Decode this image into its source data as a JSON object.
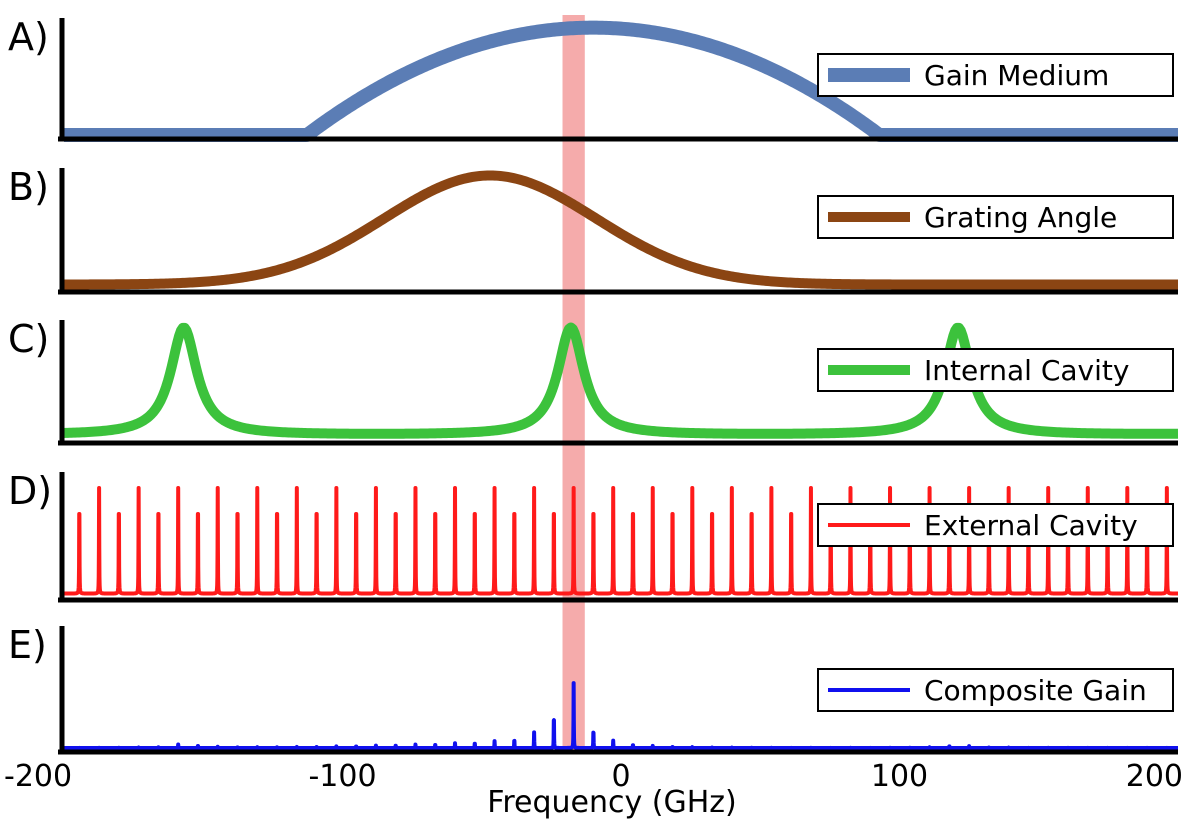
{
  "chart_data": {
    "type": "line",
    "x_axis": {
      "label": "Frequency (GHz)",
      "range": [
        -200,
        200
      ],
      "ticks": [
        -200,
        -100,
        0,
        100,
        200
      ],
      "tick_labels": [
        "-200",
        "-100",
        "0",
        "100",
        "200"
      ]
    },
    "highlight_band": {
      "center": -17,
      "width": 8,
      "color": "#f4a6a6"
    },
    "panels": [
      {
        "label": "A)",
        "series": {
          "name": "Gain Medium",
          "color": "#5b7db5",
          "kind": "wide",
          "center": -10,
          "curvature": 3e-07,
          "level": 0.95
        },
        "legend": "Gain Medium"
      },
      {
        "label": "B)",
        "series": {
          "name": "Grating Angle",
          "color": "#8b4513",
          "kind": "gaussian",
          "center": -47,
          "sigma": 38,
          "baseline": 0.03,
          "peak": 0.97
        },
        "legend": "Grating Angle"
      },
      {
        "label": "C)",
        "series": {
          "name": "Internal Cavity",
          "color": "#3cc23c",
          "kind": "airy",
          "peaks": [
            -157,
            -18,
            121
          ],
          "fsr": 139,
          "finesse_f": 60,
          "baseline": 0.03,
          "peak": 0.97
        },
        "legend": "Internal Cavity"
      },
      {
        "label": "D)",
        "series": {
          "name": "External Cavity",
          "color": "#ff1a1a",
          "kind": "comb",
          "spacing": 7.1,
          "offset": -17,
          "finesse_f": 1500,
          "baseline": 0.02,
          "peak": 0.9
        },
        "legend": "External Cavity"
      },
      {
        "label": "E)",
        "series": {
          "name": "Composite Gain",
          "color": "#1010ee",
          "kind": "product",
          "baseline": 0.0,
          "peak": 0.65
        },
        "legend": "Composite Gain"
      }
    ]
  }
}
